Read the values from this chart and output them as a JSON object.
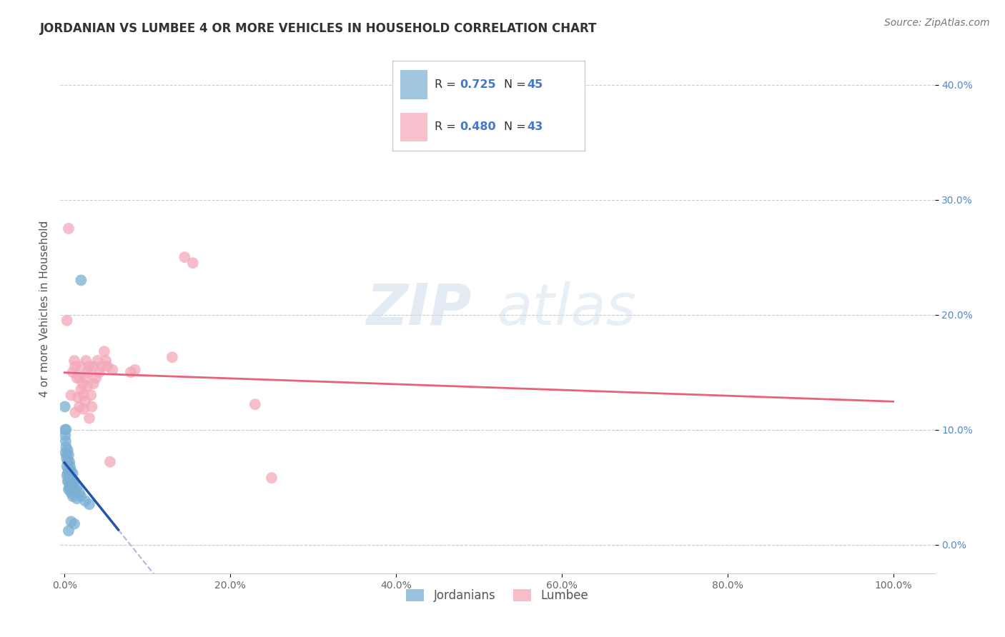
{
  "title": "JORDANIAN VS LUMBEE 4 OR MORE VEHICLES IN HOUSEHOLD CORRELATION CHART",
  "source": "Source: ZipAtlas.com",
  "xlabel": "",
  "ylabel": "4 or more Vehicles in Household",
  "legend_jordanians": "Jordanians",
  "legend_lumbee": "Lumbee",
  "r_jordanian": 0.725,
  "n_jordanian": 45,
  "r_lumbee": 0.48,
  "n_lumbee": 43,
  "xlim": [
    -0.005,
    1.05
  ],
  "ylim": [
    -0.025,
    0.435
  ],
  "xticks": [
    0.0,
    0.2,
    0.4,
    0.6,
    0.8,
    1.0
  ],
  "xticklabels": [
    "0.0%",
    "20.0%",
    "40.0%",
    "60.0%",
    "80.0%",
    "100.0%"
  ],
  "yticks": [
    0.0,
    0.1,
    0.2,
    0.3,
    0.4
  ],
  "yticklabels": [
    "0.0%",
    "10.0%",
    "20.0%",
    "30.0%",
    "40.0%"
  ],
  "grid_color": "#cccccc",
  "watermark_zip": "ZIP",
  "watermark_atlas": "atlas",
  "background_color": "#ffffff",
  "jordanian_color": "#7bafd4",
  "lumbee_color": "#f4a8b8",
  "jordanian_line_color": "#2255aa",
  "lumbee_line_color": "#e8607a",
  "jordanian_scatter": [
    [
      0.0005,
      0.12
    ],
    [
      0.0008,
      0.1
    ],
    [
      0.001,
      0.095
    ],
    [
      0.001,
      0.08
    ],
    [
      0.0015,
      0.09
    ],
    [
      0.002,
      0.085
    ],
    [
      0.002,
      0.1
    ],
    [
      0.0025,
      0.075
    ],
    [
      0.003,
      0.078
    ],
    [
      0.003,
      0.068
    ],
    [
      0.003,
      0.06
    ],
    [
      0.004,
      0.082
    ],
    [
      0.004,
      0.072
    ],
    [
      0.004,
      0.062
    ],
    [
      0.004,
      0.055
    ],
    [
      0.005,
      0.078
    ],
    [
      0.005,
      0.065
    ],
    [
      0.005,
      0.055
    ],
    [
      0.005,
      0.048
    ],
    [
      0.006,
      0.072
    ],
    [
      0.006,
      0.06
    ],
    [
      0.006,
      0.05
    ],
    [
      0.007,
      0.068
    ],
    [
      0.007,
      0.058
    ],
    [
      0.007,
      0.048
    ],
    [
      0.008,
      0.064
    ],
    [
      0.008,
      0.055
    ],
    [
      0.008,
      0.045
    ],
    [
      0.009,
      0.058
    ],
    [
      0.009,
      0.048
    ],
    [
      0.01,
      0.062
    ],
    [
      0.01,
      0.052
    ],
    [
      0.01,
      0.042
    ],
    [
      0.012,
      0.055
    ],
    [
      0.013,
      0.048
    ],
    [
      0.015,
      0.05
    ],
    [
      0.015,
      0.04
    ],
    [
      0.018,
      0.045
    ],
    [
      0.02,
      0.042
    ],
    [
      0.025,
      0.038
    ],
    [
      0.03,
      0.035
    ],
    [
      0.02,
      0.23
    ],
    [
      0.008,
      0.02
    ],
    [
      0.012,
      0.018
    ],
    [
      0.005,
      0.012
    ]
  ],
  "lumbee_scatter": [
    [
      0.003,
      0.195
    ],
    [
      0.005,
      0.275
    ],
    [
      0.008,
      0.13
    ],
    [
      0.01,
      0.15
    ],
    [
      0.012,
      0.16
    ],
    [
      0.013,
      0.155
    ],
    [
      0.013,
      0.115
    ],
    [
      0.015,
      0.145
    ],
    [
      0.016,
      0.128
    ],
    [
      0.018,
      0.145
    ],
    [
      0.018,
      0.12
    ],
    [
      0.02,
      0.155
    ],
    [
      0.02,
      0.135
    ],
    [
      0.022,
      0.14
    ],
    [
      0.023,
      0.13
    ],
    [
      0.023,
      0.118
    ],
    [
      0.025,
      0.145
    ],
    [
      0.025,
      0.125
    ],
    [
      0.026,
      0.16
    ],
    [
      0.028,
      0.15
    ],
    [
      0.028,
      0.138
    ],
    [
      0.03,
      0.155
    ],
    [
      0.03,
      0.11
    ],
    [
      0.032,
      0.13
    ],
    [
      0.033,
      0.12
    ],
    [
      0.035,
      0.155
    ],
    [
      0.035,
      0.14
    ],
    [
      0.038,
      0.145
    ],
    [
      0.04,
      0.16
    ],
    [
      0.042,
      0.15
    ],
    [
      0.045,
      0.155
    ],
    [
      0.048,
      0.168
    ],
    [
      0.05,
      0.16
    ],
    [
      0.052,
      0.155
    ],
    [
      0.055,
      0.072
    ],
    [
      0.058,
      0.152
    ],
    [
      0.08,
      0.15
    ],
    [
      0.085,
      0.152
    ],
    [
      0.13,
      0.163
    ],
    [
      0.145,
      0.25
    ],
    [
      0.155,
      0.245
    ],
    [
      0.23,
      0.122
    ],
    [
      0.25,
      0.058
    ]
  ],
  "title_fontsize": 12,
  "axis_label_fontsize": 11,
  "tick_fontsize": 10,
  "source_fontsize": 10
}
